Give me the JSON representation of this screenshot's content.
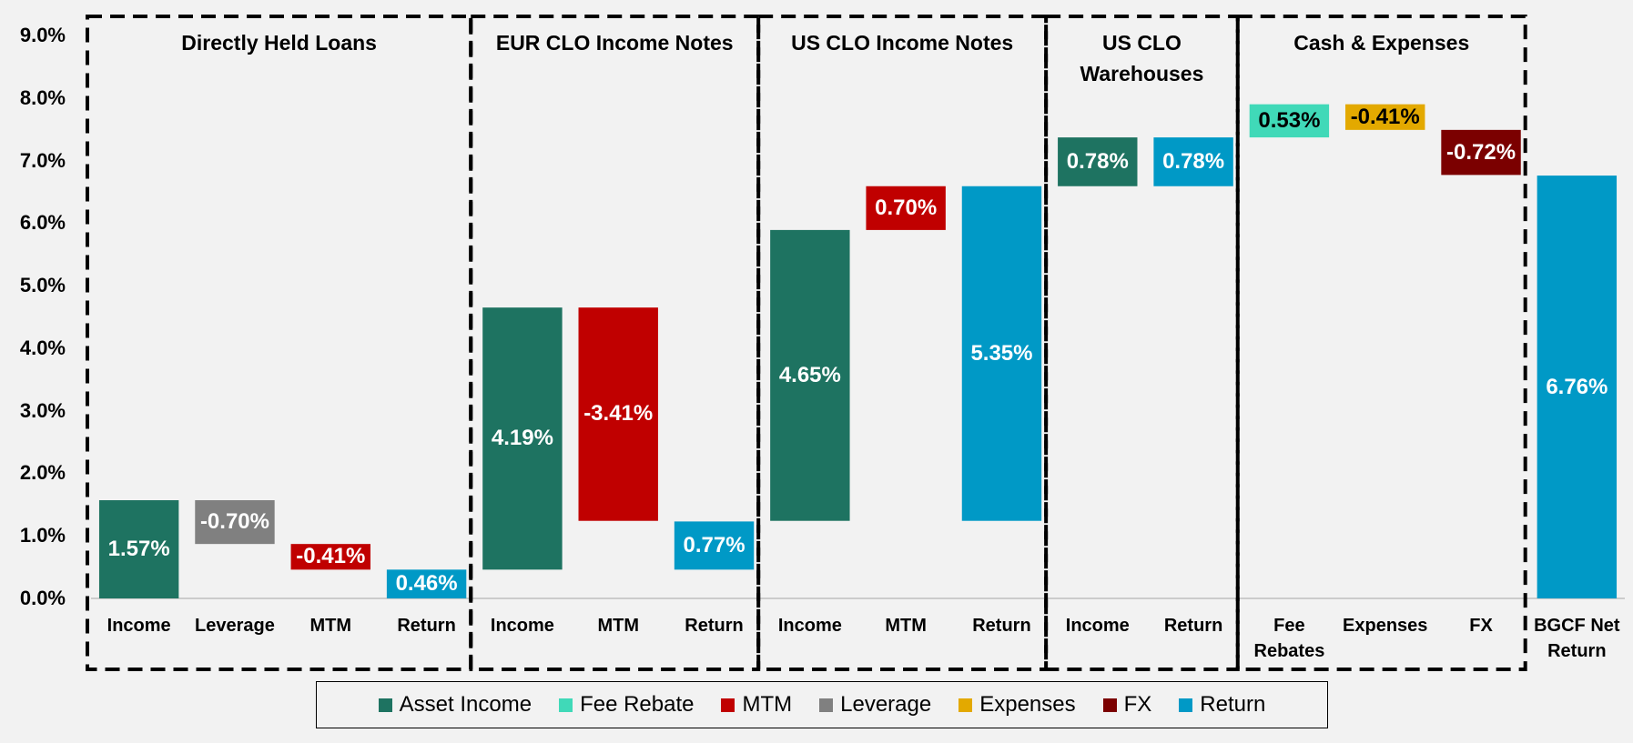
{
  "chart_data": {
    "type": "waterfall",
    "ylim": [
      0,
      9
    ],
    "yticks": [
      {
        "value": 0,
        "label": "0.0%"
      },
      {
        "value": 1,
        "label": "1.0%"
      },
      {
        "value": 2,
        "label": "2.0%"
      },
      {
        "value": 3,
        "label": "3.0%"
      },
      {
        "value": 4,
        "label": "4.0%"
      },
      {
        "value": 5,
        "label": "5.0%"
      },
      {
        "value": 6,
        "label": "6.0%"
      },
      {
        "value": 7,
        "label": "7.0%"
      },
      {
        "value": 8,
        "label": "8.0%"
      },
      {
        "value": 9,
        "label": "9.0%"
      }
    ],
    "series": [
      {
        "name": "Asset Income",
        "color": "#1e7361"
      },
      {
        "name": "Fee Rebate",
        "color": "#40d9b8"
      },
      {
        "name": "MTM",
        "color": "#c00000"
      },
      {
        "name": "Leverage",
        "color": "#808080"
      },
      {
        "name": "Expenses",
        "color": "#e3a900"
      },
      {
        "name": "FX",
        "color": "#7b0000"
      },
      {
        "name": "Return",
        "color": "#0099c6"
      }
    ],
    "groups": [
      {
        "name": "Directly Held Loans",
        "bars": [
          {
            "category": "Income",
            "series": "Asset Income",
            "measure": "relative",
            "value": 1.57,
            "value_label": "1.57%"
          },
          {
            "category": "Leverage",
            "series": "Leverage",
            "measure": "relative",
            "value": -0.7,
            "value_label": "-0.70%"
          },
          {
            "category": "MTM",
            "series": "MTM",
            "measure": "relative",
            "value": -0.41,
            "value_label": "-0.41%"
          },
          {
            "category": "Return",
            "series": "Return",
            "measure": "group_total",
            "value": 0.46,
            "value_label": "0.46%"
          }
        ]
      },
      {
        "name": "EUR CLO Income Notes",
        "bars": [
          {
            "category": "Income",
            "series": "Asset Income",
            "measure": "relative",
            "value": 4.19,
            "value_label": "4.19%"
          },
          {
            "category": "MTM",
            "series": "MTM",
            "measure": "relative",
            "value": -3.41,
            "value_label": "-3.41%"
          },
          {
            "category": "Return",
            "series": "Return",
            "measure": "group_total",
            "value": 0.77,
            "value_label": "0.77%"
          }
        ]
      },
      {
        "name": "US CLO Income Notes",
        "bars": [
          {
            "category": "Income",
            "series": "Asset Income",
            "measure": "relative",
            "value": 4.65,
            "value_label": "4.65%"
          },
          {
            "category": "MTM",
            "series": "MTM",
            "measure": "relative",
            "value": 0.7,
            "value_label": "0.70%"
          },
          {
            "category": "Return",
            "series": "Return",
            "measure": "group_total",
            "value": 5.35,
            "value_label": "5.35%"
          }
        ]
      },
      {
        "name": "US CLO Warehouses",
        "bars": [
          {
            "category": "Income",
            "series": "Asset Income",
            "measure": "relative",
            "value": 0.78,
            "value_label": "0.78%"
          },
          {
            "category": "Return",
            "series": "Return",
            "measure": "group_total",
            "value": 0.78,
            "value_label": "0.78%"
          }
        ]
      },
      {
        "name": "Cash & Expenses",
        "bars": [
          {
            "category": "Fee Rebates",
            "series": "Fee Rebate",
            "measure": "relative",
            "value": 0.53,
            "value_label": "0.53%"
          },
          {
            "category": "Expenses",
            "series": "Expenses",
            "measure": "relative",
            "value": -0.41,
            "value_label": "-0.41%"
          },
          {
            "category": "FX",
            "series": "FX",
            "measure": "relative",
            "value": -0.72,
            "value_label": "-0.72%"
          }
        ]
      },
      {
        "bars": [
          {
            "category": "BGCF Net Return",
            "series": "Return",
            "measure": "total",
            "value": 6.76,
            "value_label": "6.76%"
          }
        ]
      }
    ]
  }
}
